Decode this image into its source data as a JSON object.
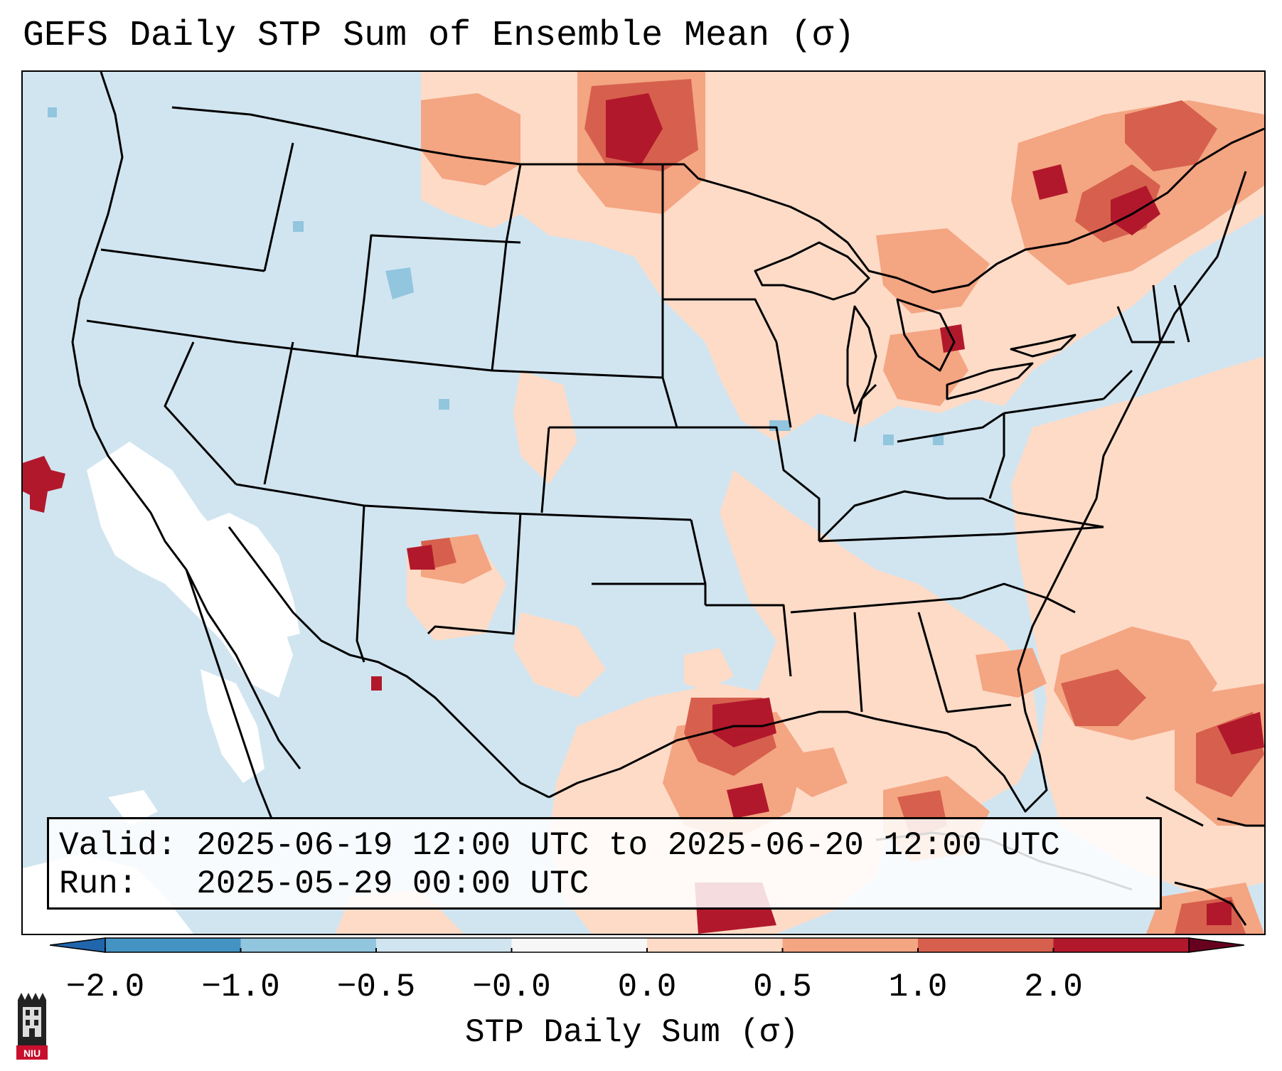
{
  "title": "GEFS Daily STP Sum of Ensemble Mean (σ)",
  "info": {
    "valid_label": "Valid:",
    "valid_value": "2025-06-19 12:00 UTC to 2025-06-20 12:00 UTC",
    "run_label": "Run:",
    "run_value": "2025-05-29 00:00 UTC"
  },
  "colorbar": {
    "label": "STP Daily Sum (σ)",
    "ticks": [
      "−2.0",
      "−1.0",
      "−0.5",
      "−0.0",
      "0.0",
      "0.5",
      "1.0",
      "2.0"
    ],
    "bin_colors": [
      "#4393c3",
      "#92c5de",
      "#d1e5f0",
      "#f7f7f7",
      "#fddbc7",
      "#f4a582",
      "#d6604d",
      "#b2182b"
    ],
    "extend": "both"
  },
  "palette": {
    "background": "#d1e5f0",
    "land_zero": "#ffffff",
    "ocean": "#d1e5f0",
    "light": "#fddbc7",
    "medium": "#f4a582",
    "strong": "#d6604d",
    "extreme": "#b2182b",
    "negative": "#92c5de"
  },
  "logo": {
    "text": "NIU",
    "icon": "niu-logo-icon"
  }
}
